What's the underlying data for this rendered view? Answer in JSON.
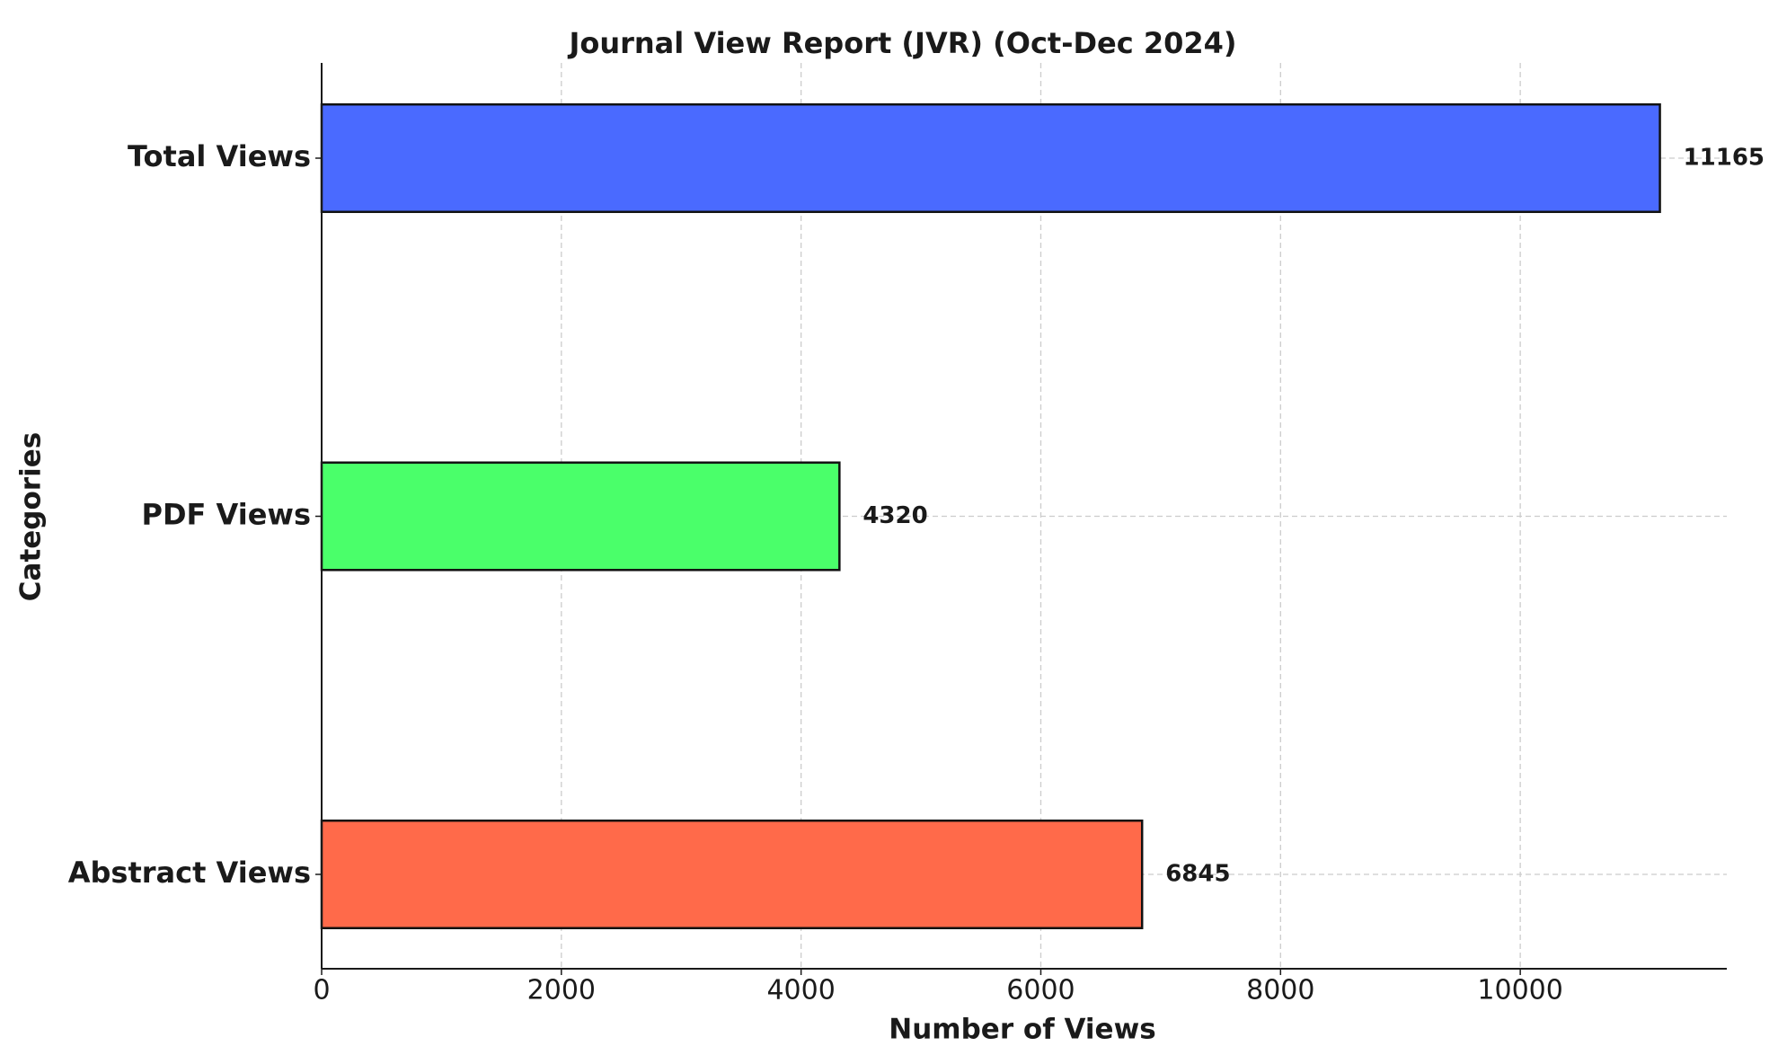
{
  "chart_data": {
    "type": "barh",
    "title": "Journal View Report (JVR) (Oct-Dec 2024)",
    "x_label": "Number of Views",
    "y_label": "Categories",
    "categories": [
      "Abstract Views",
      "PDF Views",
      "Total Views"
    ],
    "values": [
      6845,
      4320,
      11165
    ],
    "colors": [
      "#ff6a4a",
      "#4aff6a",
      "#4a6aff"
    ],
    "xlim": [
      0,
      11723
    ],
    "xticks": [
      0,
      2000,
      4000,
      6000,
      8000,
      10000
    ],
    "grid": true
  }
}
